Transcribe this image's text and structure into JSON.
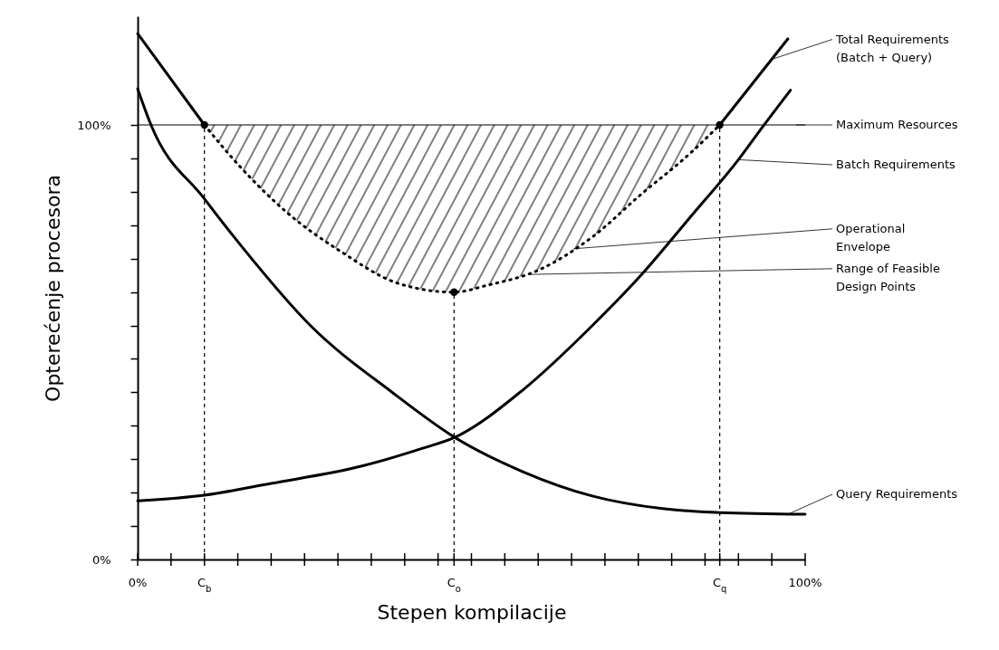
{
  "chart_data": {
    "type": "line",
    "xlabel": "Stepen kompilacije",
    "ylabel": "Opterećenje procesora",
    "xlim": [
      0,
      100
    ],
    "ylim": [
      0,
      125
    ],
    "xticks": [
      {
        "value": 0,
        "label": "0%"
      },
      {
        "value": 5,
        "label": null
      },
      {
        "value": 10,
        "label": "C$_{b}$"
      },
      {
        "value": 15,
        "label": null
      },
      {
        "value": 20,
        "label": null
      },
      {
        "value": 25,
        "label": null
      },
      {
        "value": 30,
        "label": null
      },
      {
        "value": 35,
        "label": null
      },
      {
        "value": 40,
        "label": null
      },
      {
        "value": 45,
        "label": null
      },
      {
        "value": 47.4,
        "label": "C$_{o}$"
      },
      {
        "value": 50,
        "label": null
      },
      {
        "value": 55,
        "label": null
      },
      {
        "value": 60,
        "label": null
      },
      {
        "value": 65,
        "label": null
      },
      {
        "value": 70,
        "label": null
      },
      {
        "value": 75,
        "label": null
      },
      {
        "value": 80,
        "label": null
      },
      {
        "value": 85,
        "label": null
      },
      {
        "value": 87.2,
        "label": "C$_{q}$"
      },
      {
        "value": 90,
        "label": null
      },
      {
        "value": 95,
        "label": null
      },
      {
        "value": 100,
        "label": "100%"
      }
    ],
    "yticks": [
      {
        "value": 0,
        "label": "0%"
      },
      {
        "value": 7.7,
        "label": null
      },
      {
        "value": 15.4,
        "label": null
      },
      {
        "value": 23.1,
        "label": null
      },
      {
        "value": 30.8,
        "label": null
      },
      {
        "value": 38.5,
        "label": null
      },
      {
        "value": 46.2,
        "label": null
      },
      {
        "value": 53.8,
        "label": null
      },
      {
        "value": 61.5,
        "label": null
      },
      {
        "value": 69.2,
        "label": null
      },
      {
        "value": 76.9,
        "label": null
      },
      {
        "value": 84.6,
        "label": null
      },
      {
        "value": 92.3,
        "label": null
      },
      {
        "value": 100,
        "label": "100%"
      }
    ],
    "grid": false,
    "series": [
      {
        "color": "#000000",
        "x": [
          0,
          10,
          47.4,
          87.2,
          97.4
        ],
        "values": [
          121,
          100,
          null,
          100,
          119.8
        ]
      },
      {
        "color": "#000000",
        "x": [
          0,
          10,
          20,
          33.6,
          42.7,
          47.5,
          57.7,
          68.1,
          75.4,
          82.8,
          90,
          93.6,
          97.8
        ],
        "values": [
          13.5,
          14.8,
          17.5,
          21.5,
          25.6,
          28.1,
          39,
          53.8,
          65.4,
          78.8,
          92,
          99.5,
          108
        ]
      },
      {
        "color": "#000000",
        "x": [
          0,
          2,
          10,
          15.6,
          25.9,
          38.1,
          47.5,
          57.7,
          68.1,
          78.6,
          87.2,
          100
        ],
        "values": [
          108.3,
          100,
          83,
          72,
          53.8,
          38.5,
          28.1,
          20.2,
          14.6,
          11.7,
          10.8,
          10.4
        ]
      },
      {
        "color": "#000000",
        "line_style": "dotted",
        "x": [
          10,
          15.1,
          22.4,
          30.5,
          39.1,
          47.4,
          52.4,
          60.2,
          68.1,
          75.4,
          82.8,
          87.2
        ],
        "values": [
          100,
          90.8,
          79.8,
          70.8,
          63.5,
          61.5,
          63.1,
          66.7,
          74.2,
          84,
          93.5,
          100
        ],
        "lower": [
          100,
          90.8,
          79.8,
          70.8,
          63.5,
          61.5,
          63.1,
          66.7,
          74.2,
          84,
          93.5,
          100
        ],
        "upper": [
          100,
          100,
          100,
          100,
          100,
          100,
          100,
          100,
          100,
          100,
          100,
          100
        ]
      },
      {
        "type": "scatter",
        "marker": "circle",
        "color": "#000000",
        "x": [
          10,
          47.4,
          87.2
        ],
        "values": [
          100,
          61.5,
          100
        ]
      }
    ],
    "ref_lines": [
      {
        "axis": "y",
        "value": 100,
        "label": "Maximum Resources",
        "color": "#000000"
      },
      {
        "axis": "x",
        "value": 10,
        "line_style": "dashed",
        "color": "#000000"
      },
      {
        "axis": "x",
        "value": 47.4,
        "line_style": "dashed",
        "color": "#000000"
      },
      {
        "axis": "x",
        "value": 87.2,
        "line_style": "dashed",
        "color": "#000000"
      }
    ],
    "annotations": [
      {
        "text": "Total Requirements\n(Batch + Query)",
        "x": 95,
        "y": 115.1
      },
      {
        "text": "Batch Requirements",
        "x": 90,
        "y": 92
      },
      {
        "text": "Operational\nEnvelope",
        "x": 65.3,
        "y": 71.5
      },
      {
        "text": "Range of Feasible\nDesign Points",
        "x": 58.8,
        "y": 65.6
      },
      {
        "text": "Query Requirements",
        "x": 97.4,
        "y": 10.4
      }
    ]
  }
}
